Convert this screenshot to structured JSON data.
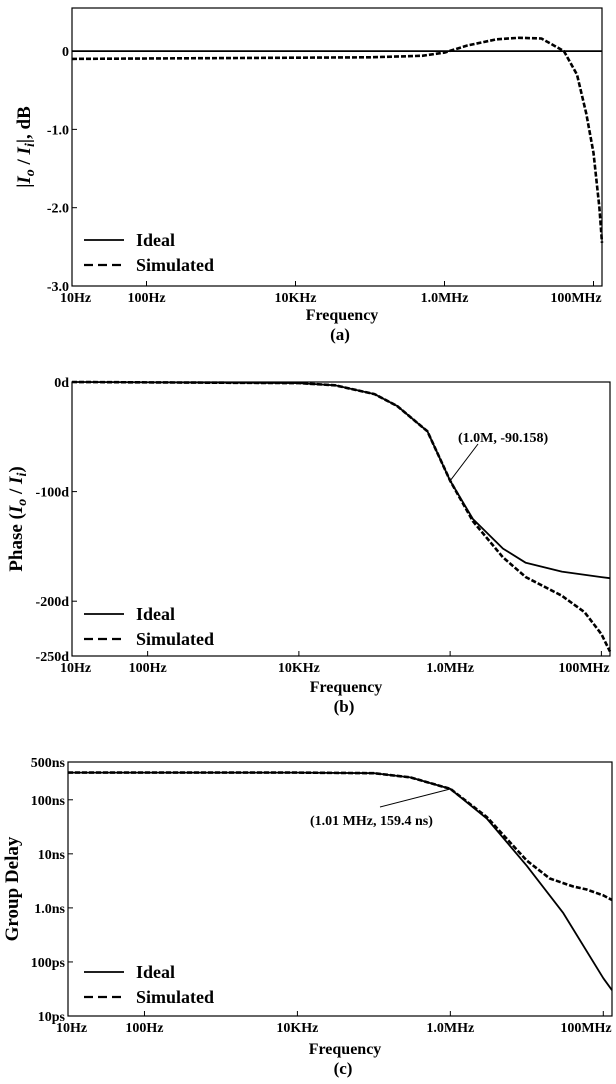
{
  "chart_data": [
    {
      "type": "line",
      "caption": "(a)",
      "xlabel": "Frequency",
      "ylabel_parts": [
        "|",
        "I",
        "o",
        " / ",
        "I",
        "i",
        "|, dB"
      ],
      "x_scale": "log",
      "xlim": [
        10,
        130000000
      ],
      "ylim": [
        -3.0,
        0.55
      ],
      "x_ticks": [
        {
          "value": 10,
          "label": "10Hz"
        },
        {
          "value": 100,
          "label": "100Hz"
        },
        {
          "value": 10000,
          "label": "10KHz"
        },
        {
          "value": 1000000,
          "label": "1.0MHz"
        },
        {
          "value": 100000000,
          "label": "100MHz"
        }
      ],
      "y_ticks": [
        {
          "value": 0,
          "label": "0"
        },
        {
          "value": -1.0,
          "label": "-1.0"
        },
        {
          "value": -2.0,
          "label": "-2.0"
        },
        {
          "value": -3.0,
          "label": "-3.0"
        }
      ],
      "legend": {
        "position": "bottom-left"
      },
      "series": [
        {
          "name": "Ideal",
          "style": "solid",
          "x": [
            10,
            130000000
          ],
          "y": [
            0,
            0
          ]
        },
        {
          "name": "Simulated",
          "style": "dashed",
          "x": [
            10,
            1000,
            100000,
            500000,
            1000000,
            2000000,
            5000000,
            10000000,
            20000000,
            40000000,
            60000000,
            80000000,
            100000000,
            120000000,
            130000000
          ],
          "y": [
            -0.1,
            -0.09,
            -0.08,
            -0.06,
            -0.02,
            0.07,
            0.15,
            0.17,
            0.16,
            0.0,
            -0.3,
            -0.8,
            -1.3,
            -2.0,
            -2.45
          ]
        }
      ]
    },
    {
      "type": "line",
      "caption": "(b)",
      "xlabel": "Frequency",
      "ylabel_parts": [
        "Phase (",
        "I",
        "o",
        " / ",
        "I",
        "i",
        ")"
      ],
      "x_scale": "log",
      "xlim": [
        10,
        130000000
      ],
      "ylim": [
        -250,
        0
      ],
      "x_ticks": [
        {
          "value": 10,
          "label": "10Hz"
        },
        {
          "value": 100,
          "label": "100Hz"
        },
        {
          "value": 10000,
          "label": "10KHz"
        },
        {
          "value": 1000000,
          "label": "1.0MHz"
        },
        {
          "value": 100000000,
          "label": "100MHz"
        }
      ],
      "y_ticks": [
        {
          "value": 0,
          "label": "0d"
        },
        {
          "value": -100,
          "label": "-100d"
        },
        {
          "value": -200,
          "label": "-200d"
        },
        {
          "value": -250,
          "label": "-250d"
        }
      ],
      "annotation": {
        "label": "(1.0M, -90.158)",
        "x": 1000000,
        "y": -90.158
      },
      "legend": {
        "position": "bottom-left"
      },
      "series": [
        {
          "name": "Ideal",
          "style": "solid",
          "x": [
            10,
            10000,
            30000,
            100000,
            200000,
            500000,
            1000000,
            2000000,
            5000000,
            10000000,
            30000000,
            100000000,
            130000000
          ],
          "y": [
            0,
            -1,
            -3,
            -11,
            -22,
            -45,
            -90,
            -125,
            -152,
            -165,
            -173,
            -178,
            -179
          ]
        },
        {
          "name": "Simulated",
          "style": "dashed",
          "x": [
            10,
            10000,
            30000,
            100000,
            200000,
            500000,
            1000000,
            2000000,
            5000000,
            10000000,
            30000000,
            60000000,
            100000000,
            130000000
          ],
          "y": [
            0,
            -1,
            -3,
            -11,
            -22,
            -45,
            -90,
            -127,
            -160,
            -178,
            -195,
            -210,
            -230,
            -246
          ]
        }
      ]
    },
    {
      "type": "line",
      "caption": "(c)",
      "xlabel": "Frequency",
      "ylabel": "Group Delay",
      "x_scale": "log",
      "y_scale": "log",
      "xlim": [
        10,
        130000000
      ],
      "ylim": [
        1e-11,
        5e-07
      ],
      "x_ticks": [
        {
          "value": 10,
          "label": "10Hz"
        },
        {
          "value": 100,
          "label": "100Hz"
        },
        {
          "value": 10000,
          "label": "10KHz"
        },
        {
          "value": 1000000,
          "label": "1.0MHz"
        },
        {
          "value": 100000000,
          "label": "100MHz"
        }
      ],
      "y_ticks": [
        {
          "value": 5e-07,
          "label": "500ns"
        },
        {
          "value": 1e-07,
          "label": "100ns"
        },
        {
          "value": 1e-08,
          "label": "10ns"
        },
        {
          "value": 1e-09,
          "label": "1.0ns"
        },
        {
          "value": 1e-10,
          "label": "100ps"
        },
        {
          "value": 1e-11,
          "label": "10ps"
        }
      ],
      "annotation": {
        "label": "(1.01 MHz, 159.4 ns)",
        "x": 1010000,
        "y": 1.594e-07
      },
      "legend": {
        "position": "bottom-left"
      },
      "series": [
        {
          "name": "Ideal",
          "style": "solid",
          "x": [
            10,
            10000,
            100000,
            300000,
            1000000,
            3000000,
            10000000,
            30000000,
            100000000,
            130000000
          ],
          "y": [
            3.18e-07,
            3.18e-07,
            3.1e-07,
            2.6e-07,
            1.59e-07,
            4.5e-08,
            6e-09,
            8e-10,
            5e-11,
            3e-11
          ]
        },
        {
          "name": "Simulated",
          "style": "dashed",
          "x": [
            10,
            10000,
            100000,
            300000,
            1000000,
            3000000,
            10000000,
            20000000,
            40000000,
            60000000,
            100000000,
            130000000
          ],
          "y": [
            3.18e-07,
            3.18e-07,
            3.1e-07,
            2.6e-07,
            1.594e-07,
            4.8e-08,
            7.5e-09,
            3.5e-09,
            2.5e-09,
            2.2e-09,
            1.7e-09,
            1.4e-09
          ]
        }
      ]
    }
  ]
}
